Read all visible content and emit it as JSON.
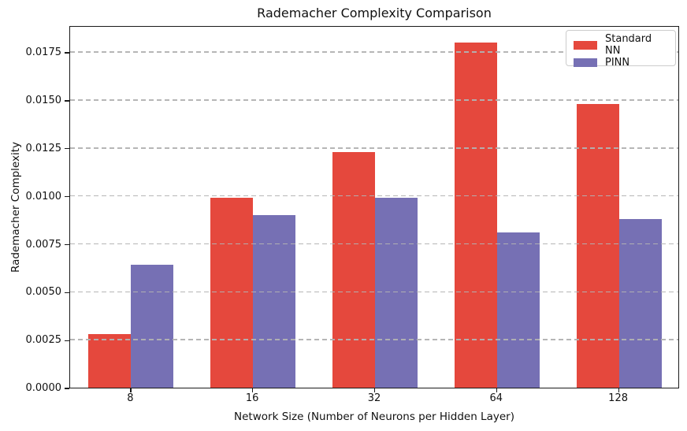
{
  "chart_data": {
    "type": "bar",
    "title": "Rademacher Complexity Comparison",
    "xlabel": "Network Size (Number of Neurons per Hidden Layer)",
    "ylabel": "Rademacher Complexity",
    "categories": [
      "8",
      "16",
      "32",
      "64",
      "128"
    ],
    "series": [
      {
        "name": "Standard NN",
        "color": "#E5483D",
        "values": [
          0.0028,
          0.0099,
          0.0123,
          0.018,
          0.0148
        ]
      },
      {
        "name": "PINN",
        "color": "#7670B4",
        "values": [
          0.0064,
          0.009,
          0.0099,
          0.0081,
          0.0088
        ]
      }
    ],
    "ylim": [
      0,
      0.0189
    ],
    "yticks": [
      0.0,
      0.0025,
      0.005,
      0.0075,
      0.01,
      0.0125,
      0.015,
      0.0175
    ],
    "ytick_labels": [
      "0.0000",
      "0.0025",
      "0.0050",
      "0.0075",
      "0.0100",
      "0.0125",
      "0.0150",
      "0.0175"
    ],
    "grid": "horizontal-dashed",
    "grid_above_bars": true,
    "legend_position": "upper-right",
    "colors": {
      "axis": "#1a1a1a",
      "grid": "#b2b2b2",
      "background": "#ffffff",
      "text": "#111111"
    }
  }
}
